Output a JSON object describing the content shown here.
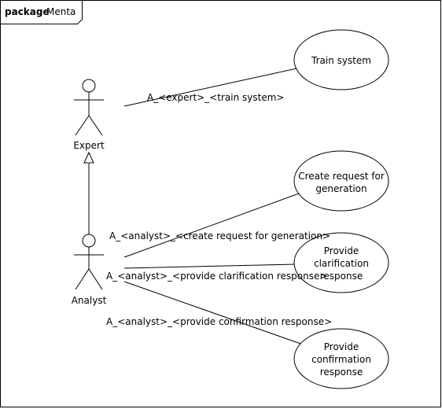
{
  "package": {
    "keyword": "package",
    "name": "Menta"
  },
  "actors": {
    "expert": "Expert",
    "analyst": "Analyst"
  },
  "use_cases": {
    "train_system": [
      "Train system"
    ],
    "create_request": [
      "Create request for",
      "generation"
    ],
    "clarification": [
      "Provide",
      "clarification",
      "response"
    ],
    "confirmation": [
      "Provide",
      "confirmation",
      "response"
    ]
  },
  "associations": {
    "expert_train": "A_<expert>_<train system>",
    "analyst_create": "A_<analyst>_<create request for generation>",
    "analyst_clarification": "A_<analyst>_<provide clarification response>",
    "analyst_confirmation": "A_<analyst>_<provide confirmation response>"
  }
}
